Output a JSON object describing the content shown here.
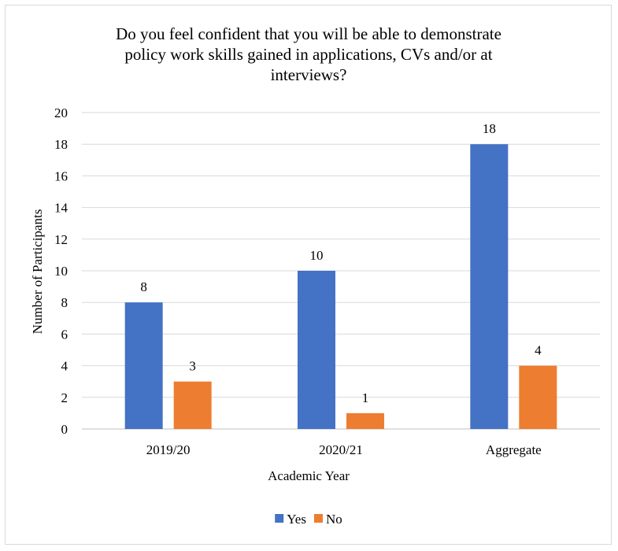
{
  "chart_data": {
    "type": "bar",
    "title_lines": [
      "Do you feel confident that you will be able to demonstrate",
      "policy work skills gained in applications, CVs and/or at",
      "interviews?"
    ],
    "xlabel": "Academic Year",
    "ylabel": "Number of Participants",
    "categories": [
      "2019/20",
      "2020/21",
      "Aggregate"
    ],
    "series": [
      {
        "name": "Yes",
        "values": [
          8,
          10,
          18
        ],
        "color": "#4472c4"
      },
      {
        "name": "No",
        "values": [
          3,
          1,
          4
        ],
        "color": "#ed7d31"
      }
    ],
    "ylim": [
      0,
      20
    ],
    "yticks": [
      0,
      2,
      4,
      6,
      8,
      10,
      12,
      14,
      16,
      18,
      20
    ],
    "grid": true,
    "legend_position": "bottom"
  }
}
